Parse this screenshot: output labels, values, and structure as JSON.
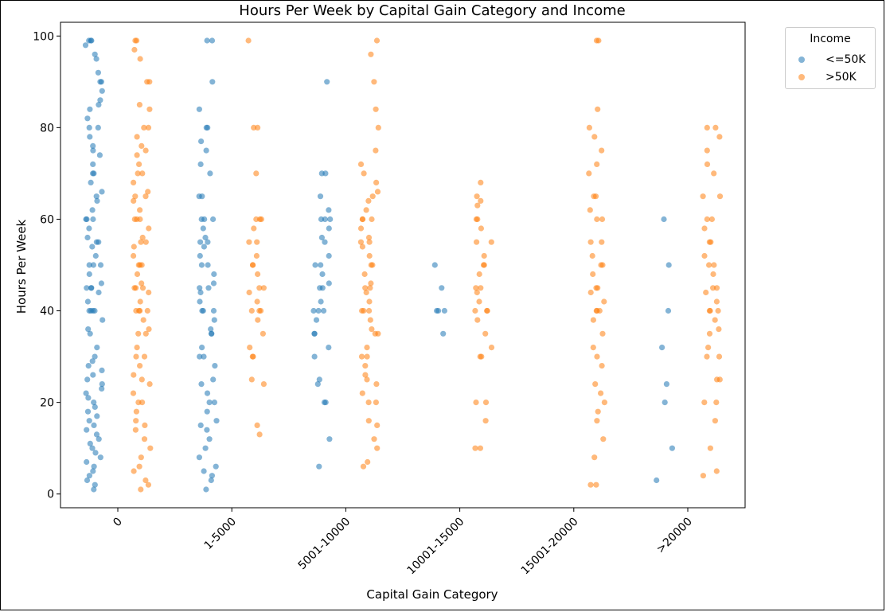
{
  "chart_data": {
    "type": "scatter",
    "title": "Hours Per Week by Capital Gain Category and Income",
    "xlabel": "Capital Gain Category",
    "ylabel": "Hours Per Week",
    "categories": [
      "0",
      "1-5000",
      "5001-10000",
      "10001-15000",
      "15001-20000",
      ">20000"
    ],
    "ylim": [
      -3,
      103
    ],
    "yticks": [
      0,
      20,
      40,
      60,
      80,
      100
    ],
    "grid": false,
    "legend": {
      "title": "Income",
      "placement": "top-right-outside"
    },
    "series": [
      {
        "name": "<=50K",
        "color": "#1f77b4",
        "points_by_category": [
          [
            1,
            2,
            3,
            4,
            5,
            6,
            7,
            8,
            9,
            10,
            11,
            12,
            13,
            14,
            15,
            16,
            17,
            18,
            19,
            20,
            21,
            22,
            23,
            24,
            25,
            26,
            27,
            28,
            29,
            30,
            32,
            35,
            36,
            38,
            40,
            40,
            40,
            40,
            42,
            44,
            45,
            45,
            45,
            46,
            48,
            50,
            50,
            50,
            52,
            54,
            55,
            55,
            56,
            58,
            60,
            60,
            60,
            62,
            64,
            65,
            66,
            68,
            70,
            70,
            72,
            74,
            75,
            76,
            78,
            80,
            80,
            82,
            84,
            85,
            86,
            88,
            90,
            90,
            92,
            95,
            96,
            98,
            99,
            99,
            99
          ],
          [
            1,
            3,
            4,
            5,
            6,
            8,
            10,
            12,
            14,
            15,
            16,
            18,
            20,
            20,
            22,
            24,
            25,
            28,
            30,
            30,
            32,
            35,
            35,
            36,
            38,
            40,
            40,
            40,
            42,
            44,
            45,
            45,
            46,
            48,
            50,
            50,
            52,
            54,
            55,
            55,
            56,
            58,
            60,
            60,
            60,
            65,
            65,
            70,
            72,
            75,
            77,
            80,
            80,
            84,
            90,
            99,
            99
          ],
          [
            6,
            12,
            20,
            20,
            24,
            25,
            30,
            32,
            35,
            35,
            38,
            40,
            40,
            40,
            42,
            45,
            45,
            46,
            48,
            50,
            50,
            52,
            55,
            56,
            58,
            60,
            60,
            60,
            62,
            65,
            70,
            70,
            90
          ],
          [
            35,
            40,
            40,
            40,
            45,
            50
          ],
          [],
          [
            3,
            10,
            20,
            24,
            32,
            40,
            50,
            60
          ]
        ]
      },
      {
        "name": ">50K",
        "color": "#ff7f0e",
        "points_by_category": [
          [
            1,
            2,
            3,
            5,
            6,
            8,
            10,
            12,
            14,
            15,
            16,
            18,
            20,
            20,
            22,
            24,
            25,
            26,
            28,
            30,
            30,
            32,
            35,
            35,
            36,
            38,
            40,
            40,
            40,
            40,
            42,
            44,
            45,
            45,
            45,
            46,
            48,
            50,
            50,
            50,
            52,
            54,
            55,
            55,
            56,
            58,
            60,
            60,
            60,
            62,
            64,
            65,
            65,
            66,
            68,
            70,
            70,
            72,
            74,
            75,
            76,
            78,
            80,
            80,
            84,
            85,
            90,
            90,
            95,
            97,
            99,
            99
          ],
          [
            13,
            15,
            24,
            25,
            30,
            30,
            32,
            35,
            38,
            40,
            40,
            40,
            42,
            44,
            45,
            45,
            48,
            50,
            50,
            52,
            55,
            55,
            58,
            60,
            60,
            60,
            70,
            80,
            80,
            99
          ],
          [
            6,
            7,
            10,
            12,
            15,
            16,
            20,
            20,
            22,
            24,
            25,
            26,
            28,
            30,
            30,
            32,
            35,
            35,
            36,
            38,
            40,
            40,
            40,
            42,
            44,
            45,
            45,
            46,
            48,
            50,
            50,
            52,
            54,
            55,
            55,
            56,
            58,
            60,
            60,
            60,
            62,
            64,
            65,
            66,
            68,
            70,
            72,
            75,
            80,
            84,
            90,
            96,
            99
          ],
          [
            10,
            10,
            16,
            20,
            20,
            30,
            30,
            32,
            35,
            38,
            40,
            40,
            40,
            42,
            44,
            45,
            45,
            48,
            50,
            50,
            52,
            55,
            55,
            58,
            60,
            60,
            63,
            64,
            65,
            68
          ],
          [
            2,
            2,
            8,
            12,
            16,
            18,
            20,
            22,
            24,
            28,
            30,
            32,
            35,
            38,
            40,
            40,
            40,
            42,
            44,
            45,
            45,
            48,
            50,
            50,
            52,
            55,
            55,
            60,
            60,
            62,
            65,
            65,
            70,
            72,
            75,
            78,
            80,
            84,
            99,
            99
          ],
          [
            4,
            5,
            10,
            16,
            20,
            20,
            25,
            25,
            30,
            30,
            32,
            35,
            36,
            38,
            40,
            40,
            40,
            42,
            44,
            45,
            45,
            48,
            50,
            50,
            52,
            55,
            55,
            58,
            60,
            60,
            65,
            65,
            70,
            72,
            75,
            78,
            80,
            80
          ]
        ]
      }
    ]
  }
}
